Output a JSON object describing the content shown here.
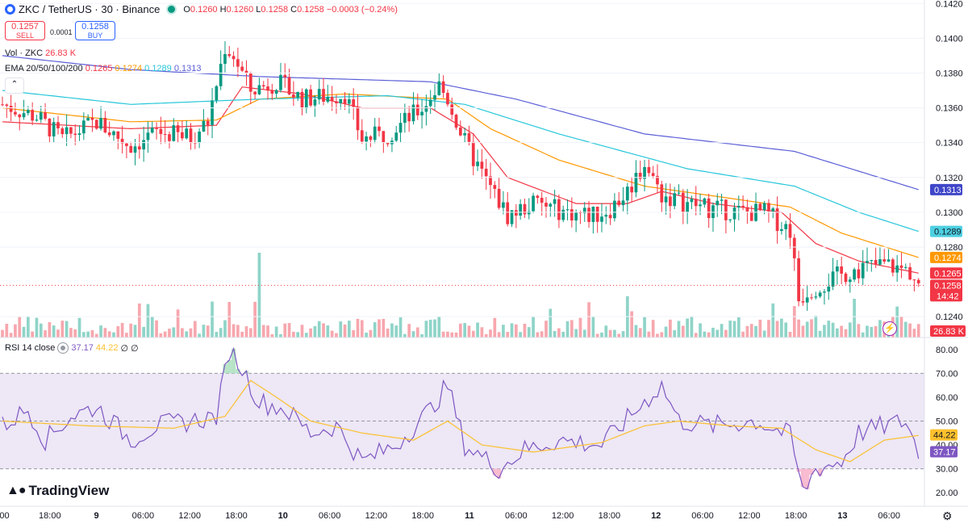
{
  "header": {
    "symbol": "ZKC / TetherUS · 30 · Binance",
    "o_label": "O",
    "o_value": "0.1260",
    "h_label": "H",
    "h_value": "0.1260",
    "l_label": "L",
    "l_value": "0.1258",
    "c_label": "C",
    "c_value": "0.1258",
    "change": "−0.0003 (−0.24%)"
  },
  "trade": {
    "sell_price": "0.1257",
    "sell_label": "SELL",
    "spread": "0.0001",
    "buy_price": "0.1258",
    "buy_label": "BUY"
  },
  "volume_legend": {
    "name": "Vol · ZKC",
    "value": "26.83 K"
  },
  "ema_legend": {
    "name": "EMA 20/50/100/200",
    "ema20": "0.1265",
    "ema50": "0.1274",
    "ema100": "0.1289",
    "ema200": "0.1313"
  },
  "rsi_legend": {
    "name": "RSI 14 close",
    "rsi": "37.17",
    "ma": "44.22",
    "v3": "∅",
    "v4": "∅"
  },
  "brand": "TradingView",
  "colors": {
    "up": "#089981",
    "down": "#f23645",
    "ema20": "#f23645",
    "ema50": "#ff9800",
    "ema100": "#26c6da",
    "ema200": "#5b5fd6",
    "rsi": "#7e57c2",
    "rsi_ma": "#fbc02d",
    "rsi_band": "#ede7f6"
  },
  "chart_data": [
    {
      "type": "candlestick",
      "title": "ZKC / TetherUS · 30 · Binance",
      "ylim": [
        0.1228,
        0.1422
      ],
      "price_ticks": [
        "0.1420",
        "0.1400",
        "0.1380",
        "0.1360",
        "0.1340",
        "0.1320",
        "0.1300",
        "0.1280",
        "0.1240"
      ],
      "x_ticks": [
        ":00",
        "18:00",
        "9",
        "06:00",
        "12:00",
        "18:00",
        "10",
        "06:00",
        "12:00",
        "18:00",
        "11",
        "06:00",
        "12:00",
        "18:00",
        "12",
        "06:00",
        "12:00",
        "18:00",
        "13",
        "06:00"
      ],
      "price_series": [
        {
          "t": 0,
          "v": 0.1362
        },
        {
          "t": 8,
          "v": 0.1355
        },
        {
          "t": 14,
          "v": 0.1342
        },
        {
          "t": 22,
          "v": 0.1352
        },
        {
          "t": 30,
          "v": 0.1338
        },
        {
          "t": 36,
          "v": 0.1346
        },
        {
          "t": 44,
          "v": 0.1343
        },
        {
          "t": 48,
          "v": 0.1352
        },
        {
          "t": 52,
          "v": 0.1395
        },
        {
          "t": 54,
          "v": 0.139
        },
        {
          "t": 58,
          "v": 0.137
        },
        {
          "t": 64,
          "v": 0.1375
        },
        {
          "t": 70,
          "v": 0.1365
        },
        {
          "t": 80,
          "v": 0.1368
        },
        {
          "t": 84,
          "v": 0.1342
        },
        {
          "t": 90,
          "v": 0.1345
        },
        {
          "t": 98,
          "v": 0.136
        },
        {
          "t": 102,
          "v": 0.1373
        },
        {
          "t": 104,
          "v": 0.1365
        },
        {
          "t": 108,
          "v": 0.134
        },
        {
          "t": 112,
          "v": 0.1322
        },
        {
          "t": 118,
          "v": 0.1298
        },
        {
          "t": 124,
          "v": 0.1305
        },
        {
          "t": 132,
          "v": 0.13
        },
        {
          "t": 138,
          "v": 0.1298
        },
        {
          "t": 142,
          "v": 0.1302
        },
        {
          "t": 146,
          "v": 0.1312
        },
        {
          "t": 150,
          "v": 0.1328
        },
        {
          "t": 154,
          "v": 0.131
        },
        {
          "t": 160,
          "v": 0.1305
        },
        {
          "t": 166,
          "v": 0.1302
        },
        {
          "t": 172,
          "v": 0.13
        },
        {
          "t": 178,
          "v": 0.13
        },
        {
          "t": 184,
          "v": 0.129
        },
        {
          "t": 186,
          "v": 0.125
        },
        {
          "t": 188,
          "v": 0.1255
        },
        {
          "t": 194,
          "v": 0.1262
        },
        {
          "t": 200,
          "v": 0.1268
        },
        {
          "t": 206,
          "v": 0.127
        },
        {
          "t": 212,
          "v": 0.1266
        },
        {
          "t": 214,
          "v": 0.1258
        }
      ],
      "ema_series": [
        {
          "name": "EMA 20",
          "current": 0.1265,
          "points": [
            {
              "t": 0,
              "v": 0.1352
            },
            {
              "t": 30,
              "v": 0.1348
            },
            {
              "t": 50,
              "v": 0.135
            },
            {
              "t": 56,
              "v": 0.1372
            },
            {
              "t": 70,
              "v": 0.1368
            },
            {
              "t": 84,
              "v": 0.136
            },
            {
              "t": 100,
              "v": 0.136
            },
            {
              "t": 110,
              "v": 0.1345
            },
            {
              "t": 118,
              "v": 0.132
            },
            {
              "t": 134,
              "v": 0.1305
            },
            {
              "t": 146,
              "v": 0.1305
            },
            {
              "t": 154,
              "v": 0.1312
            },
            {
              "t": 166,
              "v": 0.1305
            },
            {
              "t": 182,
              "v": 0.13
            },
            {
              "t": 190,
              "v": 0.1282
            },
            {
              "t": 200,
              "v": 0.1272
            },
            {
              "t": 214,
              "v": 0.1265
            }
          ]
        },
        {
          "name": "EMA 50",
          "current": 0.1274,
          "points": [
            {
              "t": 0,
              "v": 0.136
            },
            {
              "t": 30,
              "v": 0.1352
            },
            {
              "t": 50,
              "v": 0.1353
            },
            {
              "t": 60,
              "v": 0.1365
            },
            {
              "t": 80,
              "v": 0.1368
            },
            {
              "t": 104,
              "v": 0.1365
            },
            {
              "t": 114,
              "v": 0.1348
            },
            {
              "t": 130,
              "v": 0.133
            },
            {
              "t": 150,
              "v": 0.1315
            },
            {
              "t": 170,
              "v": 0.1308
            },
            {
              "t": 184,
              "v": 0.1303
            },
            {
              "t": 196,
              "v": 0.1288
            },
            {
              "t": 214,
              "v": 0.1274
            }
          ]
        },
        {
          "name": "EMA 100",
          "current": 0.1289,
          "points": [
            {
              "t": 0,
              "v": 0.137
            },
            {
              "t": 30,
              "v": 0.1362
            },
            {
              "t": 60,
              "v": 0.1365
            },
            {
              "t": 90,
              "v": 0.1367
            },
            {
              "t": 108,
              "v": 0.1362
            },
            {
              "t": 130,
              "v": 0.1345
            },
            {
              "t": 160,
              "v": 0.1325
            },
            {
              "t": 185,
              "v": 0.1315
            },
            {
              "t": 200,
              "v": 0.13
            },
            {
              "t": 214,
              "v": 0.1289
            }
          ]
        },
        {
          "name": "EMA 200",
          "current": 0.1313,
          "points": [
            {
              "t": 0,
              "v": 0.139
            },
            {
              "t": 30,
              "v": 0.1382
            },
            {
              "t": 60,
              "v": 0.1378
            },
            {
              "t": 100,
              "v": 0.1375
            },
            {
              "t": 120,
              "v": 0.1365
            },
            {
              "t": 150,
              "v": 0.1345
            },
            {
              "t": 185,
              "v": 0.1335
            },
            {
              "t": 214,
              "v": 0.1313
            }
          ]
        }
      ],
      "last_price": 0.1258,
      "countdown": "14:42",
      "volume": {
        "current": "26.83 K",
        "max_ratio_peak_index": 60
      }
    },
    {
      "type": "line",
      "title": "RSI 14 close",
      "ylim": [
        15,
        85
      ],
      "y_ticks": [
        "80.00",
        "70.00",
        "60.00",
        "50.00",
        "40.00",
        "30.00",
        "20.00"
      ],
      "band": [
        30,
        70
      ],
      "midline": 50,
      "series": [
        {
          "name": "RSI",
          "current": 37.17,
          "points": [
            {
              "t": 0,
              "v": 48
            },
            {
              "t": 6,
              "v": 55
            },
            {
              "t": 10,
              "v": 42
            },
            {
              "t": 16,
              "v": 52
            },
            {
              "t": 22,
              "v": 56
            },
            {
              "t": 30,
              "v": 42
            },
            {
              "t": 36,
              "v": 48
            },
            {
              "t": 44,
              "v": 50
            },
            {
              "t": 50,
              "v": 52
            },
            {
              "t": 53,
              "v": 80
            },
            {
              "t": 56,
              "v": 72
            },
            {
              "t": 60,
              "v": 58
            },
            {
              "t": 66,
              "v": 55
            },
            {
              "t": 72,
              "v": 45
            },
            {
              "t": 78,
              "v": 48
            },
            {
              "t": 84,
              "v": 33
            },
            {
              "t": 92,
              "v": 40
            },
            {
              "t": 100,
              "v": 55
            },
            {
              "t": 104,
              "v": 65
            },
            {
              "t": 108,
              "v": 40
            },
            {
              "t": 116,
              "v": 30
            },
            {
              "t": 122,
              "v": 38
            },
            {
              "t": 130,
              "v": 42
            },
            {
              "t": 140,
              "v": 40
            },
            {
              "t": 150,
              "v": 58
            },
            {
              "t": 154,
              "v": 65
            },
            {
              "t": 158,
              "v": 50
            },
            {
              "t": 166,
              "v": 48
            },
            {
              "t": 176,
              "v": 50
            },
            {
              "t": 184,
              "v": 44
            },
            {
              "t": 187,
              "v": 20
            },
            {
              "t": 190,
              "v": 30
            },
            {
              "t": 196,
              "v": 33
            },
            {
              "t": 200,
              "v": 45
            },
            {
              "t": 206,
              "v": 48
            },
            {
              "t": 211,
              "v": 50
            },
            {
              "t": 214,
              "v": 37
            }
          ]
        },
        {
          "name": "RSI MA",
          "current": 44.22,
          "points": [
            {
              "t": 0,
              "v": 50
            },
            {
              "t": 20,
              "v": 48
            },
            {
              "t": 40,
              "v": 47
            },
            {
              "t": 52,
              "v": 52
            },
            {
              "t": 58,
              "v": 67
            },
            {
              "t": 64,
              "v": 60
            },
            {
              "t": 72,
              "v": 50
            },
            {
              "t": 84,
              "v": 45
            },
            {
              "t": 96,
              "v": 42
            },
            {
              "t": 104,
              "v": 50
            },
            {
              "t": 112,
              "v": 40
            },
            {
              "t": 124,
              "v": 37
            },
            {
              "t": 140,
              "v": 41
            },
            {
              "t": 150,
              "v": 48
            },
            {
              "t": 158,
              "v": 50
            },
            {
              "t": 170,
              "v": 48
            },
            {
              "t": 182,
              "v": 47
            },
            {
              "t": 190,
              "v": 38
            },
            {
              "t": 198,
              "v": 33
            },
            {
              "t": 206,
              "v": 42
            },
            {
              "t": 214,
              "v": 44
            }
          ]
        }
      ]
    }
  ]
}
